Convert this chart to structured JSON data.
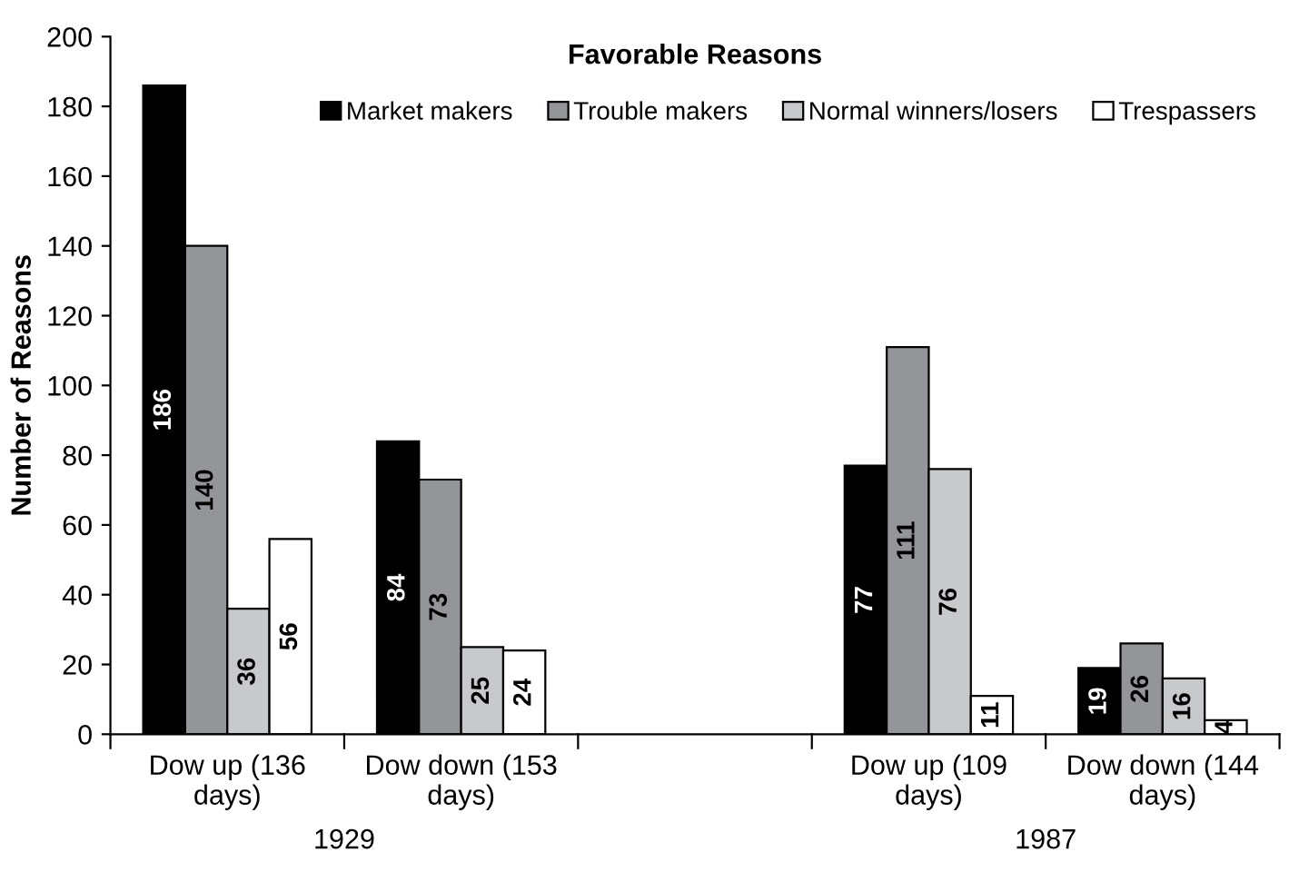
{
  "chart_data": {
    "type": "bar",
    "title": "Favorable Reasons",
    "ylabel": "Number of Reasons",
    "categories": [
      "Dow up (136\ndays)",
      "Dow down (153\ndays)",
      null,
      "Dow up (109\ndays)",
      "Dow down (144\ndays)"
    ],
    "series": [
      {
        "name": "Market makers",
        "color": "#000000",
        "values": [
          186,
          84,
          null,
          77,
          19
        ]
      },
      {
        "name": "Trouble makers",
        "color": "#939598",
        "values": [
          140,
          73,
          null,
          111,
          26
        ]
      },
      {
        "name": "Normal winners/losers",
        "color": "#c8c9cb",
        "values": [
          36,
          25,
          null,
          76,
          16
        ]
      },
      {
        "name": "Trespassers",
        "color": "#ffffff",
        "values": [
          56,
          24,
          null,
          11,
          4
        ]
      }
    ],
    "annotations": [
      "1929",
      "1987"
    ],
    "ylim": [
      0,
      200
    ],
    "yticks": [
      0,
      20,
      40,
      60,
      80,
      100,
      120,
      140,
      160,
      180,
      200
    ],
    "data_labels": true,
    "legend": "top",
    "grid": false
  }
}
